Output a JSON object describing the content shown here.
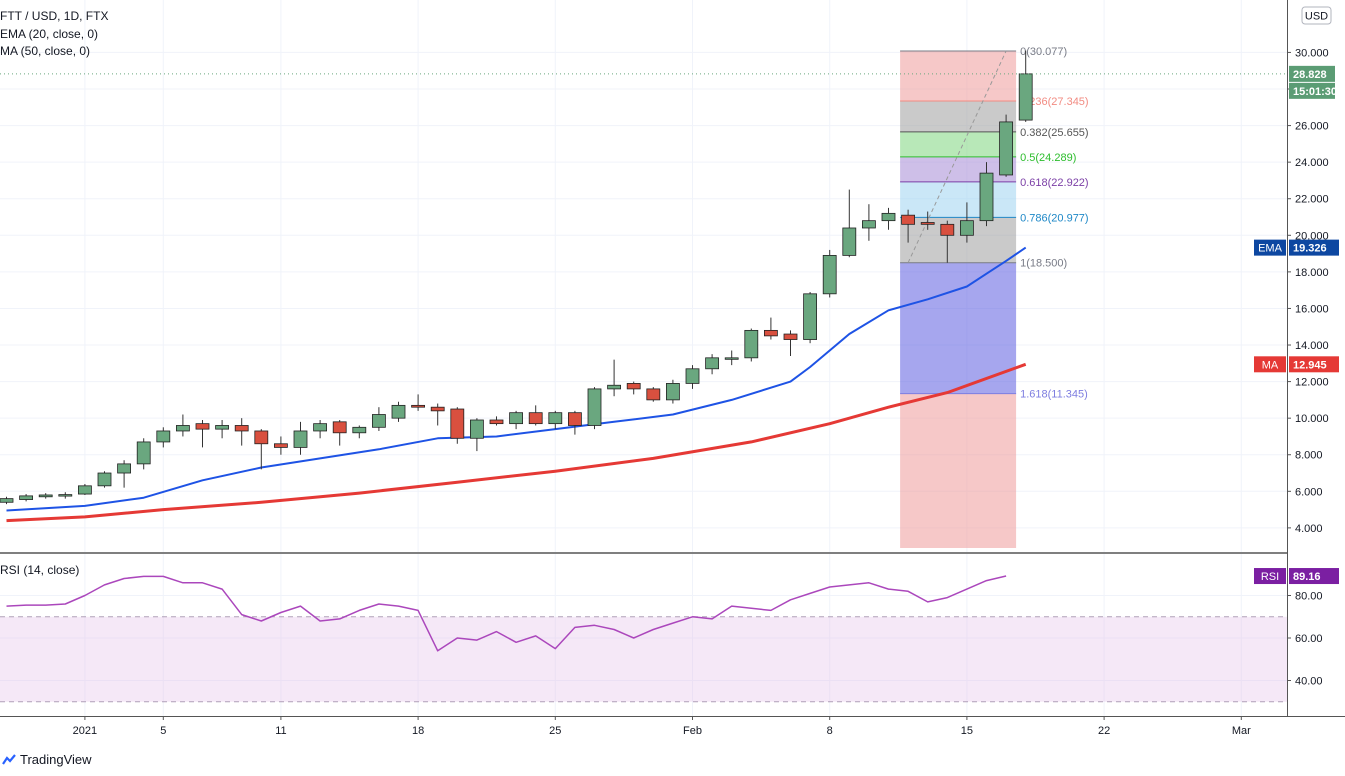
{
  "header": {
    "symbol_line": "FTT / USD, 1D, FTX",
    "ema_line": "EMA (20, close, 0)",
    "ma_line": "MA (50, close, 0)",
    "rsi_line": "RSI (14, close)"
  },
  "price_axis": {
    "currency": "USD",
    "ticks": [
      "4.000",
      "6.000",
      "8.000",
      "10.000",
      "12.000",
      "14.000",
      "16.000",
      "18.000",
      "20.000",
      "22.000",
      "24.000",
      "26.000",
      "28.000",
      "30.000"
    ],
    "last_price_label": "28.828",
    "countdown_label": "15:01:30"
  },
  "rsi_axis": {
    "ticks": [
      "40.00",
      "60.00",
      "80.00"
    ]
  },
  "time_axis": {
    "labels": [
      {
        "day": 31,
        "text": "2021"
      },
      {
        "day": 35,
        "text": "5"
      },
      {
        "day": 41,
        "text": "11"
      },
      {
        "day": 48,
        "text": "18"
      },
      {
        "day": 55,
        "text": "25"
      },
      {
        "day": 62,
        "text": "Feb"
      },
      {
        "day": 69,
        "text": "8"
      },
      {
        "day": 76,
        "text": "15"
      },
      {
        "day": 83,
        "text": "22"
      },
      {
        "day": 90,
        "text": "Mar"
      }
    ]
  },
  "badges": {
    "ema": {
      "label": "EMA",
      "value": "19.326"
    },
    "ma": {
      "label": "MA",
      "value": "12.945"
    },
    "rsi": {
      "label": "RSI",
      "value": "89.16"
    }
  },
  "fibonacci": {
    "levels": [
      {
        "ratio": 0,
        "price": 30.077,
        "label": "0(30.077)",
        "color": "#787b86",
        "fill": "#ef9a9a"
      },
      {
        "ratio": 0.236,
        "price": 27.345,
        "label": "0.236(27.345)",
        "color": "#f28b82",
        "fill": "#9e9e9e"
      },
      {
        "ratio": 0.382,
        "price": 25.655,
        "label": "0.382(25.655)",
        "color": "#555555",
        "fill": "#7ed67e"
      },
      {
        "ratio": 0.5,
        "price": 24.289,
        "label": "0.5(24.289)",
        "color": "#2dbd2d",
        "fill": "#a58bd6"
      },
      {
        "ratio": 0.618,
        "price": 22.922,
        "label": "0.618(22.922)",
        "color": "#7b3fa6",
        "fill": "#9fd4f0"
      },
      {
        "ratio": 0.786,
        "price": 20.977,
        "label": "0.786(20.977)",
        "color": "#1e88c7",
        "fill": "#9e9e9e"
      },
      {
        "ratio": 1,
        "price": 18.5,
        "label": "1(18.500)",
        "color": "#787b86",
        "fill": "#5c5ce0"
      },
      {
        "ratio": 1.618,
        "price": 11.345,
        "label": "1.618(11.345)",
        "color": "#7e7ee0",
        "fill": "#ef9a9a"
      }
    ],
    "start_day": 73,
    "end_day": 78,
    "bottom_price": 2.9,
    "trend_from": {
      "day": 73,
      "price": 18.5
    },
    "trend_to": {
      "day": 78,
      "price": 30.077
    }
  },
  "watermark": {
    "brand": "TradingView"
  },
  "chart_data": {
    "type": "candlestick",
    "title": "FTT / USD, 1D, FTX",
    "x_unit": "day index (Jan 1 2021 = 31)",
    "ylim": [
      2.9,
      31.5
    ],
    "rsi_ylim": [
      28,
      92
    ],
    "candles": [
      {
        "day": 27,
        "o": 5.4,
        "h": 5.7,
        "l": 5.3,
        "c": 5.6
      },
      {
        "day": 28,
        "o": 5.55,
        "h": 5.85,
        "l": 5.45,
        "c": 5.75
      },
      {
        "day": 29,
        "o": 5.7,
        "h": 5.9,
        "l": 5.6,
        "c": 5.8
      },
      {
        "day": 30,
        "o": 5.75,
        "h": 5.95,
        "l": 5.6,
        "c": 5.82
      },
      {
        "day": 31,
        "o": 5.85,
        "h": 6.4,
        "l": 5.8,
        "c": 6.3
      },
      {
        "day": 32,
        "o": 6.3,
        "h": 7.1,
        "l": 6.2,
        "c": 7.0
      },
      {
        "day": 33,
        "o": 7.0,
        "h": 7.7,
        "l": 6.2,
        "c": 7.5
      },
      {
        "day": 34,
        "o": 7.5,
        "h": 8.9,
        "l": 7.2,
        "c": 8.7
      },
      {
        "day": 35,
        "o": 8.7,
        "h": 9.5,
        "l": 8.4,
        "c": 9.3
      },
      {
        "day": 36,
        "o": 9.3,
        "h": 10.2,
        "l": 9.0,
        "c": 9.6
      },
      {
        "day": 37,
        "o": 9.7,
        "h": 9.9,
        "l": 8.4,
        "c": 9.4
      },
      {
        "day": 38,
        "o": 9.4,
        "h": 9.9,
        "l": 8.9,
        "c": 9.6
      },
      {
        "day": 39,
        "o": 9.6,
        "h": 10.0,
        "l": 8.5,
        "c": 9.3
      },
      {
        "day": 40,
        "o": 9.3,
        "h": 9.4,
        "l": 7.2,
        "c": 8.6
      },
      {
        "day": 41,
        "o": 8.6,
        "h": 9.0,
        "l": 8.0,
        "c": 8.4
      },
      {
        "day": 42,
        "o": 8.4,
        "h": 9.8,
        "l": 8.0,
        "c": 9.3
      },
      {
        "day": 43,
        "o": 9.3,
        "h": 9.9,
        "l": 8.9,
        "c": 9.7
      },
      {
        "day": 44,
        "o": 9.8,
        "h": 9.9,
        "l": 8.5,
        "c": 9.2
      },
      {
        "day": 45,
        "o": 9.2,
        "h": 9.6,
        "l": 8.9,
        "c": 9.5
      },
      {
        "day": 46,
        "o": 9.5,
        "h": 10.6,
        "l": 9.3,
        "c": 10.2
      },
      {
        "day": 47,
        "o": 10.0,
        "h": 10.9,
        "l": 9.8,
        "c": 10.7
      },
      {
        "day": 48,
        "o": 10.7,
        "h": 11.3,
        "l": 10.4,
        "c": 10.6
      },
      {
        "day": 49,
        "o": 10.6,
        "h": 10.8,
        "l": 9.6,
        "c": 10.4
      },
      {
        "day": 50,
        "o": 10.5,
        "h": 10.6,
        "l": 8.6,
        "c": 8.9
      },
      {
        "day": 51,
        "o": 8.9,
        "h": 10.0,
        "l": 8.2,
        "c": 9.9
      },
      {
        "day": 52,
        "o": 9.9,
        "h": 10.1,
        "l": 9.6,
        "c": 9.7
      },
      {
        "day": 53,
        "o": 9.7,
        "h": 10.4,
        "l": 9.4,
        "c": 10.3
      },
      {
        "day": 54,
        "o": 10.3,
        "h": 10.7,
        "l": 9.6,
        "c": 9.7
      },
      {
        "day": 55,
        "o": 9.7,
        "h": 10.4,
        "l": 9.4,
        "c": 10.3
      },
      {
        "day": 56,
        "o": 10.3,
        "h": 10.4,
        "l": 9.1,
        "c": 9.6
      },
      {
        "day": 57,
        "o": 9.6,
        "h": 11.7,
        "l": 9.4,
        "c": 11.6
      },
      {
        "day": 58,
        "o": 11.6,
        "h": 13.2,
        "l": 11.2,
        "c": 11.8
      },
      {
        "day": 59,
        "o": 11.9,
        "h": 12.0,
        "l": 11.3,
        "c": 11.6
      },
      {
        "day": 60,
        "o": 11.6,
        "h": 11.7,
        "l": 10.9,
        "c": 11.0
      },
      {
        "day": 61,
        "o": 11.0,
        "h": 12.1,
        "l": 10.8,
        "c": 11.9
      },
      {
        "day": 62,
        "o": 11.9,
        "h": 12.9,
        "l": 11.6,
        "c": 12.7
      },
      {
        "day": 63,
        "o": 12.7,
        "h": 13.5,
        "l": 12.4,
        "c": 13.3
      },
      {
        "day": 64,
        "o": 13.3,
        "h": 13.7,
        "l": 12.9,
        "c": 13.3
      },
      {
        "day": 65,
        "o": 13.3,
        "h": 14.9,
        "l": 13.1,
        "c": 14.8
      },
      {
        "day": 66,
        "o": 14.8,
        "h": 15.5,
        "l": 14.3,
        "c": 14.5
      },
      {
        "day": 67,
        "o": 14.6,
        "h": 14.8,
        "l": 13.4,
        "c": 14.3
      },
      {
        "day": 68,
        "o": 14.3,
        "h": 16.9,
        "l": 14.1,
        "c": 16.8
      },
      {
        "day": 69,
        "o": 16.8,
        "h": 19.2,
        "l": 16.6,
        "c": 18.9
      },
      {
        "day": 70,
        "o": 18.9,
        "h": 22.5,
        "l": 18.8,
        "c": 20.4
      },
      {
        "day": 71,
        "o": 20.4,
        "h": 21.7,
        "l": 19.7,
        "c": 20.8
      },
      {
        "day": 72,
        "o": 20.8,
        "h": 21.5,
        "l": 20.3,
        "c": 21.2
      },
      {
        "day": 73,
        "o": 21.1,
        "h": 21.4,
        "l": 19.6,
        "c": 20.6
      },
      {
        "day": 74,
        "o": 20.7,
        "h": 21.3,
        "l": 20.3,
        "c": 20.6
      },
      {
        "day": 75,
        "o": 20.6,
        "h": 20.8,
        "l": 18.5,
        "c": 20.0
      },
      {
        "day": 76,
        "o": 20.0,
        "h": 21.8,
        "l": 19.6,
        "c": 20.8
      },
      {
        "day": 77,
        "o": 20.8,
        "h": 24.0,
        "l": 20.5,
        "c": 23.4
      },
      {
        "day": 78,
        "o": 23.3,
        "h": 26.6,
        "l": 23.2,
        "c": 26.2
      },
      {
        "day": 79,
        "o": 26.3,
        "h": 30.1,
        "l": 26.2,
        "c": 28.828
      }
    ],
    "series": [
      {
        "name": "EMA (20, close, 0)",
        "color": "#1e53e5",
        "points": [
          [
            27,
            4.95
          ],
          [
            31,
            5.2
          ],
          [
            34,
            5.65
          ],
          [
            37,
            6.6
          ],
          [
            40,
            7.3
          ],
          [
            43,
            7.8
          ],
          [
            46,
            8.3
          ],
          [
            49,
            8.9
          ],
          [
            52,
            9.0
          ],
          [
            55,
            9.4
          ],
          [
            58,
            9.8
          ],
          [
            61,
            10.2
          ],
          [
            64,
            11.0
          ],
          [
            67,
            12.0
          ],
          [
            68,
            12.8
          ],
          [
            70,
            14.6
          ],
          [
            72,
            15.9
          ],
          [
            74,
            16.5
          ],
          [
            76,
            17.2
          ],
          [
            77,
            17.9
          ],
          [
            78,
            18.6
          ],
          [
            79,
            19.326
          ]
        ]
      },
      {
        "name": "MA (50, close, 0)",
        "color": "#e53935",
        "points": [
          [
            27,
            4.4
          ],
          [
            31,
            4.6
          ],
          [
            35,
            5.0
          ],
          [
            40,
            5.4
          ],
          [
            45,
            5.9
          ],
          [
            50,
            6.5
          ],
          [
            55,
            7.1
          ],
          [
            60,
            7.8
          ],
          [
            65,
            8.7
          ],
          [
            69,
            9.7
          ],
          [
            72,
            10.6
          ],
          [
            75,
            11.4
          ],
          [
            79,
            12.945
          ]
        ]
      },
      {
        "name": "RSI (14, close)",
        "color": "#ab47bc",
        "points": [
          [
            27,
            75
          ],
          [
            28,
            75.5
          ],
          [
            29,
            75.5
          ],
          [
            30,
            76
          ],
          [
            31,
            80
          ],
          [
            32,
            85
          ],
          [
            33,
            88
          ],
          [
            34,
            89
          ],
          [
            35,
            89
          ],
          [
            36,
            86
          ],
          [
            37,
            86
          ],
          [
            38,
            83
          ],
          [
            39,
            71
          ],
          [
            40,
            68
          ],
          [
            41,
            72
          ],
          [
            42,
            75
          ],
          [
            43,
            68
          ],
          [
            44,
            69
          ],
          [
            45,
            73
          ],
          [
            46,
            76
          ],
          [
            47,
            75
          ],
          [
            48,
            73
          ],
          [
            49,
            54
          ],
          [
            50,
            60
          ],
          [
            51,
            59
          ],
          [
            52,
            63
          ],
          [
            53,
            58
          ],
          [
            54,
            61
          ],
          [
            55,
            55
          ],
          [
            56,
            65
          ],
          [
            57,
            66
          ],
          [
            58,
            64
          ],
          [
            59,
            60
          ],
          [
            60,
            64
          ],
          [
            61,
            67
          ],
          [
            62,
            70
          ],
          [
            63,
            69
          ],
          [
            64,
            75
          ],
          [
            65,
            74
          ],
          [
            66,
            73
          ],
          [
            67,
            78
          ],
          [
            68,
            81
          ],
          [
            69,
            84
          ],
          [
            70,
            85
          ],
          [
            71,
            86
          ],
          [
            72,
            83
          ],
          [
            73,
            82
          ],
          [
            74,
            77
          ],
          [
            75,
            79
          ],
          [
            76,
            83
          ],
          [
            77,
            87
          ],
          [
            78,
            89.16
          ]
        ]
      }
    ]
  }
}
